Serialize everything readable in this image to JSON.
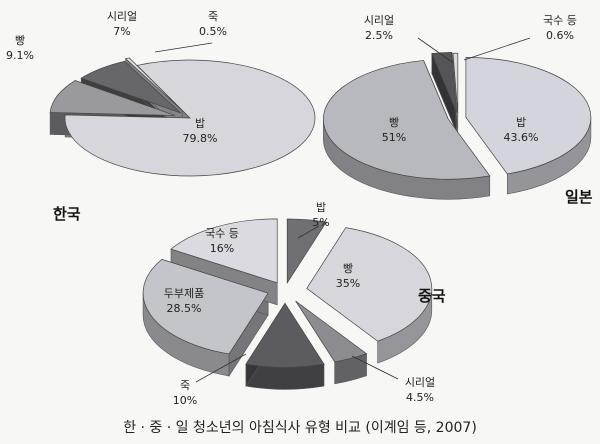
{
  "caption": "한 · 중 · 일 청소년의 아침식사 유형 비교 (이계임 등, 2007)",
  "chart_data": [
    {
      "type": "pie",
      "title": "한국",
      "unit": "%",
      "slices": [
        {
          "name": "밥",
          "value": 79.8,
          "color": "#d6d6dc",
          "label": "밥\n79.8%"
        },
        {
          "name": "빵",
          "value": 9.1,
          "color": "#9a9a9e",
          "label": "빵\n9.1%"
        },
        {
          "name": "시리얼",
          "value": 7,
          "color": "#676769",
          "label": "시리얼\n7%"
        },
        {
          "name": "죽",
          "value": 0.5,
          "color": "#dcdcdc",
          "label": "죽\n0.5%"
        }
      ]
    },
    {
      "type": "pie",
      "title": "일본",
      "unit": "%",
      "slices": [
        {
          "name": "밥",
          "value": 43.6,
          "color": "#d4d4dc",
          "label": "밥\n43.6%"
        },
        {
          "name": "빵",
          "value": 51,
          "color": "#b8b8bf",
          "label": "빵\n51%"
        },
        {
          "name": "시리얼",
          "value": 2.5,
          "color": "#555558",
          "label": "시리얼\n2.5%"
        },
        {
          "name": "국수 등",
          "value": 0.6,
          "color": "#dcdcdc",
          "label": "국수 등\n0.6%"
        }
      ]
    },
    {
      "type": "pie",
      "title": "중국",
      "unit": "%",
      "slices": [
        {
          "name": "밥",
          "value": 5,
          "color": "#707074",
          "label": "밥\n5%"
        },
        {
          "name": "빵",
          "value": 35,
          "color": "#d6d6dc",
          "label": "빵\n35%"
        },
        {
          "name": "시리얼",
          "value": 4.5,
          "color": "#8c8c90",
          "label": "시리얼\n4.5%"
        },
        {
          "name": "죽",
          "value": 10,
          "color": "#5c5c60",
          "label": "죽\n10%"
        },
        {
          "name": "두부제품",
          "value": 28.5,
          "color": "#c4c4cb",
          "label": "두부제품\n28.5%"
        },
        {
          "name": "국수 등",
          "value": 16,
          "color": "#dadae0",
          "label": "국수 등\n16%"
        }
      ]
    }
  ]
}
